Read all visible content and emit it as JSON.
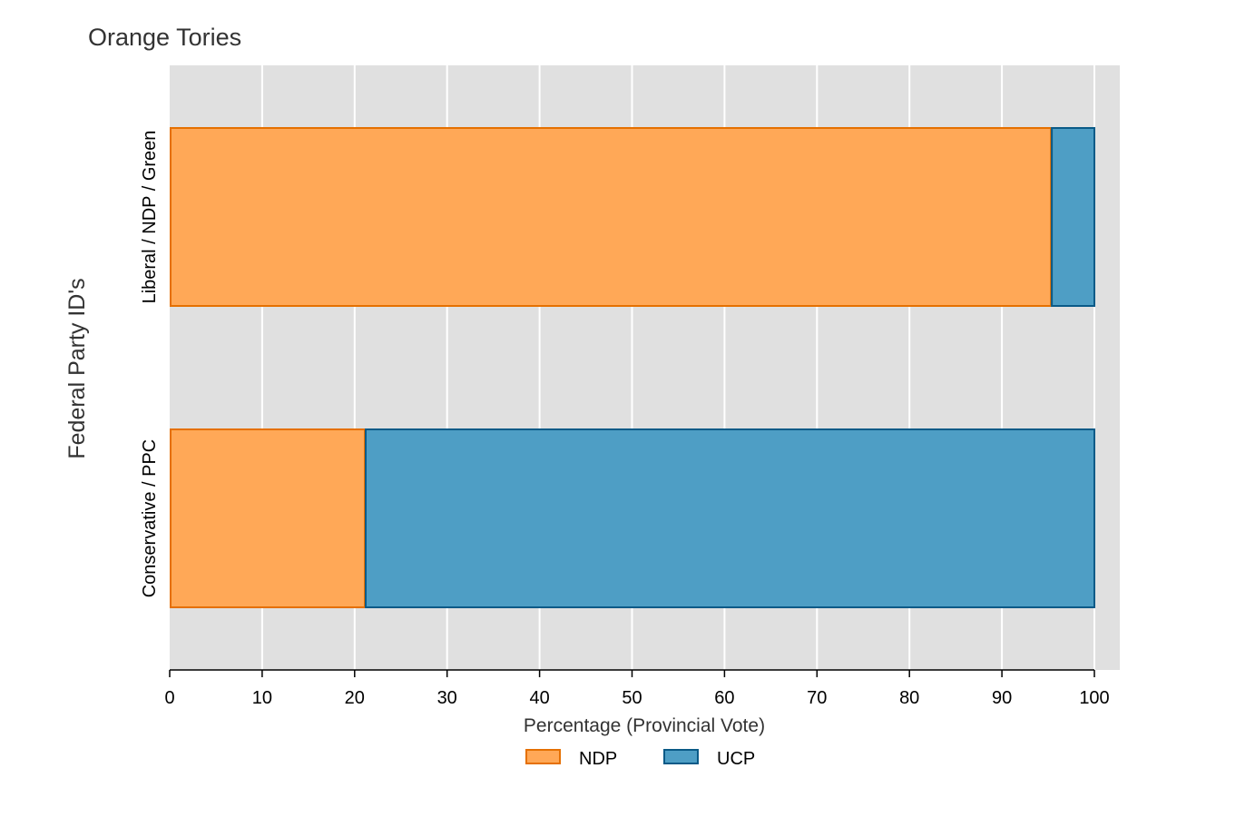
{
  "chart_data": {
    "type": "bar",
    "orientation": "horizontal",
    "stacked": true,
    "title": "Orange Tories",
    "xlabel": "Percentage (Provincial Vote)",
    "ylabel": "Federal Party ID's",
    "xlim": [
      0,
      100
    ],
    "xticks": [
      0,
      10,
      20,
      30,
      40,
      50,
      60,
      70,
      80,
      90,
      100
    ],
    "categories": [
      "Liberal / NDP / Green",
      "Conservative / PPC"
    ],
    "series": [
      {
        "name": "NDP",
        "values": [
          95.3,
          21.1
        ],
        "color": "#ffa857",
        "edge": "#e57000"
      },
      {
        "name": "UCP",
        "values": [
          4.7,
          78.9
        ],
        "color": "#4e9ec5",
        "edge": "#0a5a87"
      }
    ],
    "grid": true,
    "legend_position": "bottom"
  },
  "colors": {
    "panel_background": "#e0e0e0",
    "gridline": "#ffffff"
  }
}
